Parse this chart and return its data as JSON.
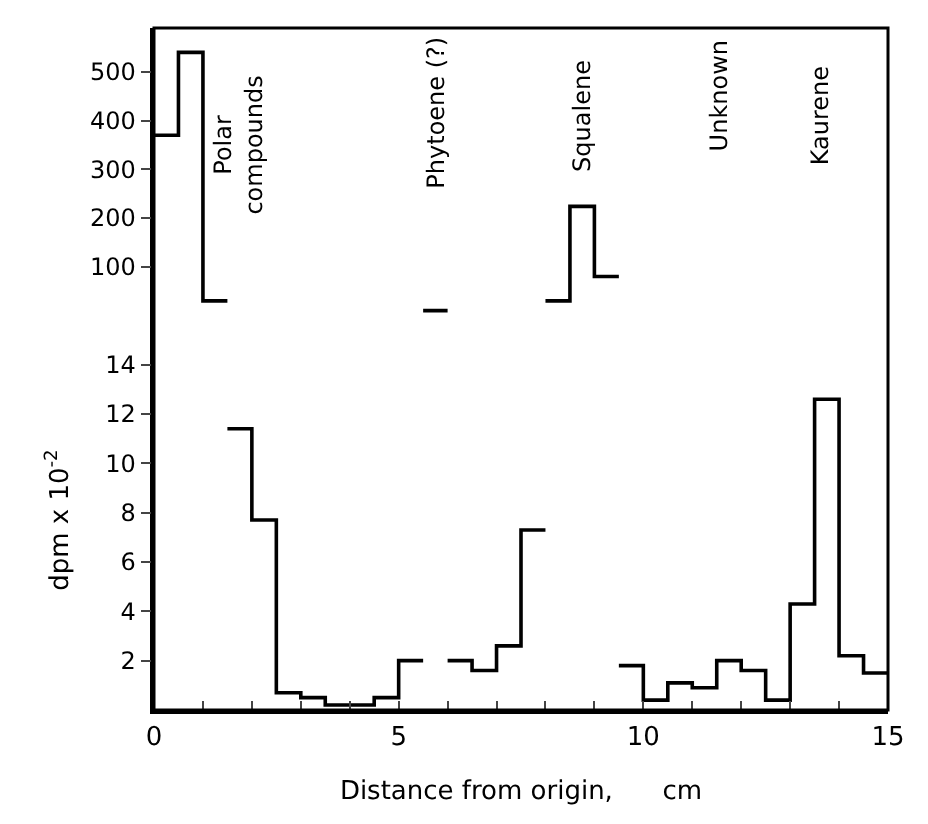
{
  "chart_data": [
    {
      "type": "step",
      "series": [
        {
          "color": "#000000",
          "x": [
            0,
            0.5,
            1,
            1.5
          ],
          "values": [
            370,
            540,
            30,
            30
          ]
        },
        {
          "color": "#000000",
          "x": [
            5.5,
            6
          ],
          "values": [
            10,
            10
          ]
        },
        {
          "color": "#000000",
          "x": [
            8,
            8.5,
            9,
            9.5
          ],
          "values": [
            30,
            224,
            80,
            80
          ]
        }
      ],
      "xlim": [
        0,
        15
      ],
      "ylim": [
        -30,
        590
      ],
      "yticks": [
        100,
        200,
        300,
        400,
        500
      ],
      "tick_labels": "y",
      "annotations": [
        "Polar\ncompounds",
        "Phytoene (?)",
        "Squalene",
        "Unknown",
        "Kaurene"
      ]
    },
    {
      "type": "step",
      "series": [
        {
          "color": "#000000",
          "x": [
            1.5,
            2,
            2.5,
            3,
            3.5,
            4,
            4.5,
            5,
            5.5
          ],
          "values": [
            11.4,
            7.7,
            0.7,
            0.5,
            0.2,
            0.2,
            0.5,
            2.0,
            2.0
          ]
        },
        {
          "color": "#000000",
          "x": [
            6,
            6.5,
            7,
            7.5,
            8
          ],
          "values": [
            2.0,
            1.6,
            2.6,
            7.3,
            7.3
          ]
        },
        {
          "color": "#000000",
          "x": [
            9.5,
            10,
            10.5,
            11,
            11.5,
            12,
            12.5,
            13,
            13.5,
            14,
            14.5,
            15
          ],
          "values": [
            1.8,
            0.4,
            1.1,
            0.9,
            2.0,
            1.6,
            0.4,
            4.3,
            12.6,
            2.2,
            1.5,
            1.5
          ]
        }
      ],
      "xlim": [
        0,
        15
      ],
      "ylim": [
        0,
        15.4
      ],
      "yticks": [
        2,
        4,
        6,
        8,
        10,
        12,
        14
      ],
      "xticks": [
        0,
        {
          "value": 1,
          "label": null
        },
        {
          "value": 2,
          "label": null
        },
        {
          "value": 3,
          "label": null
        },
        {
          "value": 4,
          "label": null
        },
        5,
        {
          "value": 6,
          "label": null
        },
        {
          "value": 7,
          "label": null
        },
        {
          "value": 8,
          "label": null
        },
        {
          "value": 9,
          "label": null
        },
        10,
        {
          "value": 11,
          "label": null
        },
        {
          "value": 12,
          "label": null
        },
        {
          "value": 13,
          "label": null
        },
        {
          "value": 14,
          "label": null
        },
        15
      ],
      "xlabel": "Distance from origin,      cm",
      "ylabel": "dpm x 10$^{-2}$"
    }
  ]
}
